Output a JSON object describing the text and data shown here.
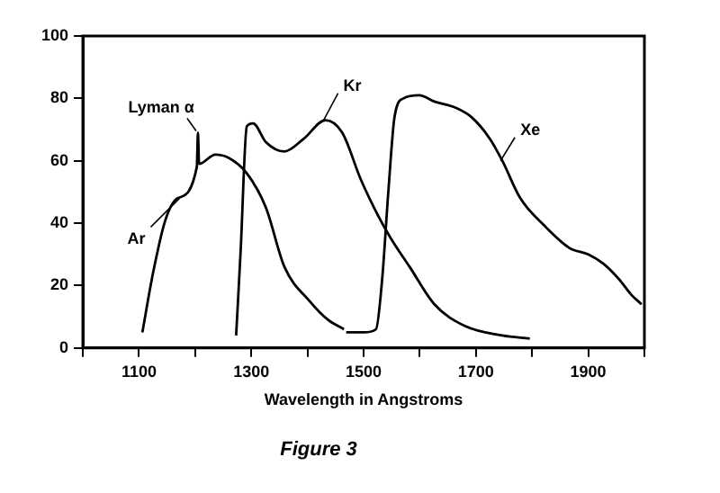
{
  "chart_data": {
    "type": "line",
    "xlabel": "Wavelength in Angstroms",
    "annotations": [
      {
        "text": "Lyman α",
        "x": 1205,
        "y": 69
      },
      "Figure 3"
    ],
    "series": [
      {
        "name": "Ar",
        "color": "#000000",
        "x": [
          1106,
          1125,
          1147,
          1169,
          1203,
          1205,
          1207,
          1236,
          1259,
          1292,
          1326,
          1359,
          1404,
          1437,
          1465
        ],
        "values": [
          5,
          24,
          41,
          48,
          58,
          69,
          59,
          62,
          61,
          56,
          45,
          26,
          15,
          9,
          6
        ]
      },
      {
        "name": "Kr",
        "color": "#000000",
        "x": [
          1273,
          1281,
          1292,
          1303,
          1326,
          1359,
          1393,
          1432,
          1462,
          1495,
          1527,
          1549,
          1582,
          1626,
          1681,
          1747,
          1796
        ],
        "values": [
          4,
          31,
          71,
          72,
          66,
          63,
          67,
          73,
          69,
          54,
          42,
          35,
          26,
          14,
          7,
          4,
          3
        ]
      },
      {
        "name": "Xe",
        "color": "#000000",
        "x": [
          1469,
          1500,
          1522,
          1533,
          1544,
          1555,
          1571,
          1599,
          1626,
          1664,
          1692,
          1725,
          1747,
          1779,
          1823,
          1867,
          1900,
          1927,
          1955,
          1977,
          1995
        ],
        "values": [
          5,
          5,
          6,
          22,
          50,
          74,
          80,
          81,
          79,
          77,
          74,
          67,
          60,
          48,
          39,
          32,
          30,
          27,
          22,
          17,
          14
        ]
      }
    ],
    "xlim": [
      1000,
      2000
    ],
    "xticks": [
      {
        "value": 1000,
        "label": null
      },
      1100,
      {
        "value": 1200,
        "label": null
      },
      1300,
      {
        "value": 1400,
        "label": null
      },
      1500,
      {
        "value": 1600,
        "label": null
      },
      1700,
      {
        "value": 1800,
        "label": null
      },
      1900,
      {
        "value": 2000,
        "label": null
      }
    ],
    "ylim": [
      0,
      100
    ],
    "yticks": [
      0,
      20,
      40,
      60,
      80,
      100
    ],
    "grid": false,
    "legend": false,
    "marker": "none",
    "line_style": "solid"
  }
}
